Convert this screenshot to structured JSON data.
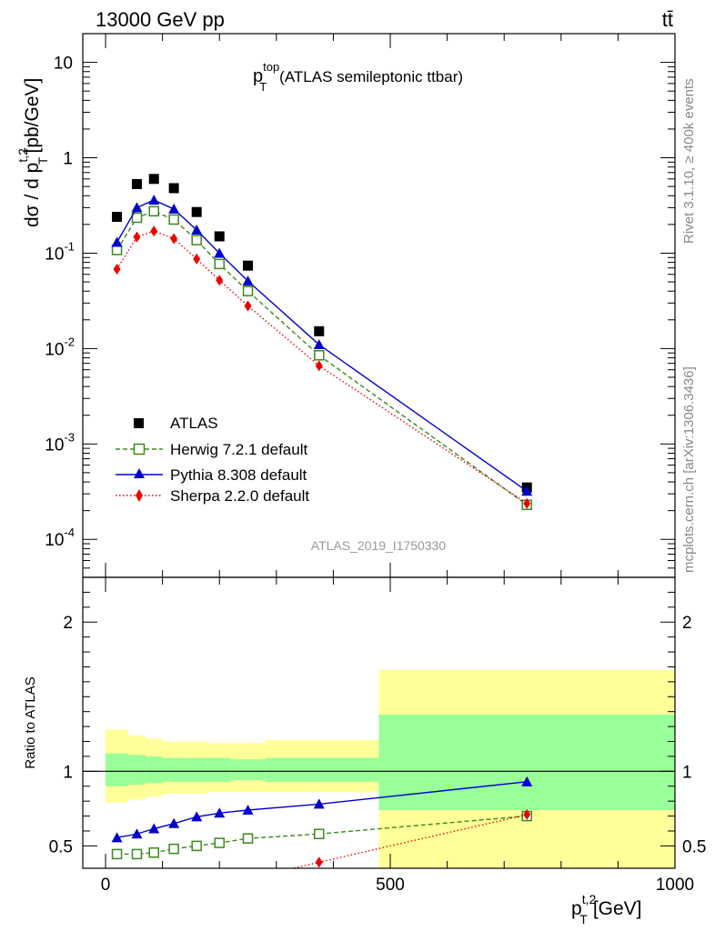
{
  "header": {
    "left": "13000 GeV pp",
    "right": "tt̄"
  },
  "side_labels": {
    "top": "Rivet 3.1.10, ≥ 400k events",
    "bottom": "mcplots.cern.ch [arXiv:1306.3436]"
  },
  "colors": {
    "atlas": "#000000",
    "herwig": "#3a8a1a",
    "pythia": "#0000cc",
    "sherpa": "#ee0000",
    "band_inner": "#99ff99",
    "band_outer": "#ffff99"
  },
  "chart_data": [
    {
      "type": "scatter",
      "title_main": "p",
      "title_sup": "top",
      "title_sub": "T",
      "title_rest": "(ATLAS semileptonic ttbar)",
      "analysis_label": "ATLAS_2019_I1750330",
      "ylabel_main": "dσ / d p",
      "ylabel_sup": "t,2",
      "ylabel_sub": "T",
      "ylabel_unit": "[pb/GeV]",
      "yscale": "log",
      "xlim": [
        -40,
        1000
      ],
      "ylim": [
        4e-05,
        20
      ],
      "y_ticks": [
        {
          "value": 0.0001,
          "base": "10",
          "exp": "-4"
        },
        {
          "value": 0.001,
          "base": "10",
          "exp": "-3"
        },
        {
          "value": 0.01,
          "base": "10",
          "exp": "-2"
        },
        {
          "value": 0.1,
          "base": "10",
          "exp": "-1"
        },
        {
          "value": 1,
          "base": "1",
          "exp": ""
        },
        {
          "value": 10,
          "base": "10",
          "exp": ""
        }
      ],
      "legend_position": "center-left",
      "series": [
        {
          "name": "ATLAS",
          "style": "square",
          "x": [
            20,
            55,
            85,
            120,
            160,
            200,
            250,
            375,
            740
          ],
          "y": [
            0.24,
            0.53,
            0.6,
            0.48,
            0.27,
            0.15,
            0.074,
            0.0152,
            0.00035
          ]
        },
        {
          "name": "Herwig 7.2.1 default",
          "style": "open-square-dashed",
          "x": [
            20,
            55,
            85,
            120,
            160,
            200,
            250,
            375,
            740
          ],
          "y": [
            0.108,
            0.235,
            0.275,
            0.225,
            0.137,
            0.077,
            0.04,
            0.0085,
            0.00023
          ]
        },
        {
          "name": "Pythia 8.308 default",
          "style": "triangle-solid",
          "x": [
            20,
            55,
            85,
            120,
            160,
            200,
            250,
            375,
            740
          ],
          "y": [
            0.13,
            0.3,
            0.36,
            0.29,
            0.175,
            0.1,
            0.051,
            0.011,
            0.00032
          ]
        },
        {
          "name": "Sherpa 2.2.0 default",
          "style": "diamond-dotted",
          "x": [
            20,
            55,
            85,
            120,
            160,
            200,
            250,
            375,
            740
          ],
          "y": [
            0.068,
            0.148,
            0.17,
            0.142,
            0.087,
            0.052,
            0.028,
            0.0066,
            0.000238
          ]
        }
      ]
    },
    {
      "type": "scatter",
      "ylabel": "Ratio to ATLAS",
      "xlabel_main": "p",
      "xlabel_sup": "t,2",
      "xlabel_sub": "T",
      "xlabel_unit": "[GeV]",
      "xlim": [
        -40,
        1000
      ],
      "ylim": [
        0.35,
        2.3
      ],
      "x_ticks": [
        "0",
        "500",
        "1000"
      ],
      "x_tick_values": [
        0,
        500,
        1000
      ],
      "y_ticks": [
        "0.5",
        "1",
        "2"
      ],
      "y_tick_values": [
        0.5,
        1,
        2
      ],
      "reference_line": 1,
      "bands": [
        {
          "x0": 0,
          "x1": 40,
          "inner": [
            0.9,
            1.12
          ],
          "outer": [
            0.79,
            1.28
          ]
        },
        {
          "x0": 40,
          "x1": 70,
          "inner": [
            0.91,
            1.11
          ],
          "outer": [
            0.81,
            1.24
          ]
        },
        {
          "x0": 70,
          "x1": 100,
          "inner": [
            0.92,
            1.1
          ],
          "outer": [
            0.83,
            1.22
          ]
        },
        {
          "x0": 100,
          "x1": 140,
          "inner": [
            0.93,
            1.09
          ],
          "outer": [
            0.85,
            1.2
          ]
        },
        {
          "x0": 140,
          "x1": 180,
          "inner": [
            0.93,
            1.09
          ],
          "outer": [
            0.85,
            1.2
          ]
        },
        {
          "x0": 180,
          "x1": 220,
          "inner": [
            0.93,
            1.09
          ],
          "outer": [
            0.86,
            1.19
          ]
        },
        {
          "x0": 220,
          "x1": 280,
          "inner": [
            0.94,
            1.08
          ],
          "outer": [
            0.86,
            1.19
          ]
        },
        {
          "x0": 280,
          "x1": 480,
          "inner": [
            0.93,
            1.09
          ],
          "outer": [
            0.86,
            1.21
          ]
        },
        {
          "x0": 480,
          "x1": 1000,
          "inner": [
            0.74,
            1.38
          ],
          "outer": [
            0.35,
            1.68
          ]
        }
      ],
      "series": [
        {
          "name": "Herwig 7.2.1 default",
          "style": "open-square-dashed",
          "x": [
            20,
            55,
            85,
            120,
            160,
            200,
            250,
            375,
            740
          ],
          "y": [
            0.445,
            0.445,
            0.455,
            0.48,
            0.5,
            0.52,
            0.55,
            0.58,
            0.7
          ]
        },
        {
          "name": "Pythia 8.308 default",
          "style": "triangle-solid",
          "x": [
            20,
            55,
            85,
            120,
            160,
            200,
            250,
            375,
            740
          ],
          "y": [
            0.555,
            0.58,
            0.615,
            0.65,
            0.695,
            0.72,
            0.74,
            0.78,
            0.93
          ]
        },
        {
          "name": "Sherpa 2.2.0 default",
          "style": "diamond-dotted",
          "x": [
            250,
            375,
            740
          ],
          "y": [
            0.28,
            0.39,
            0.71
          ]
        }
      ]
    }
  ]
}
